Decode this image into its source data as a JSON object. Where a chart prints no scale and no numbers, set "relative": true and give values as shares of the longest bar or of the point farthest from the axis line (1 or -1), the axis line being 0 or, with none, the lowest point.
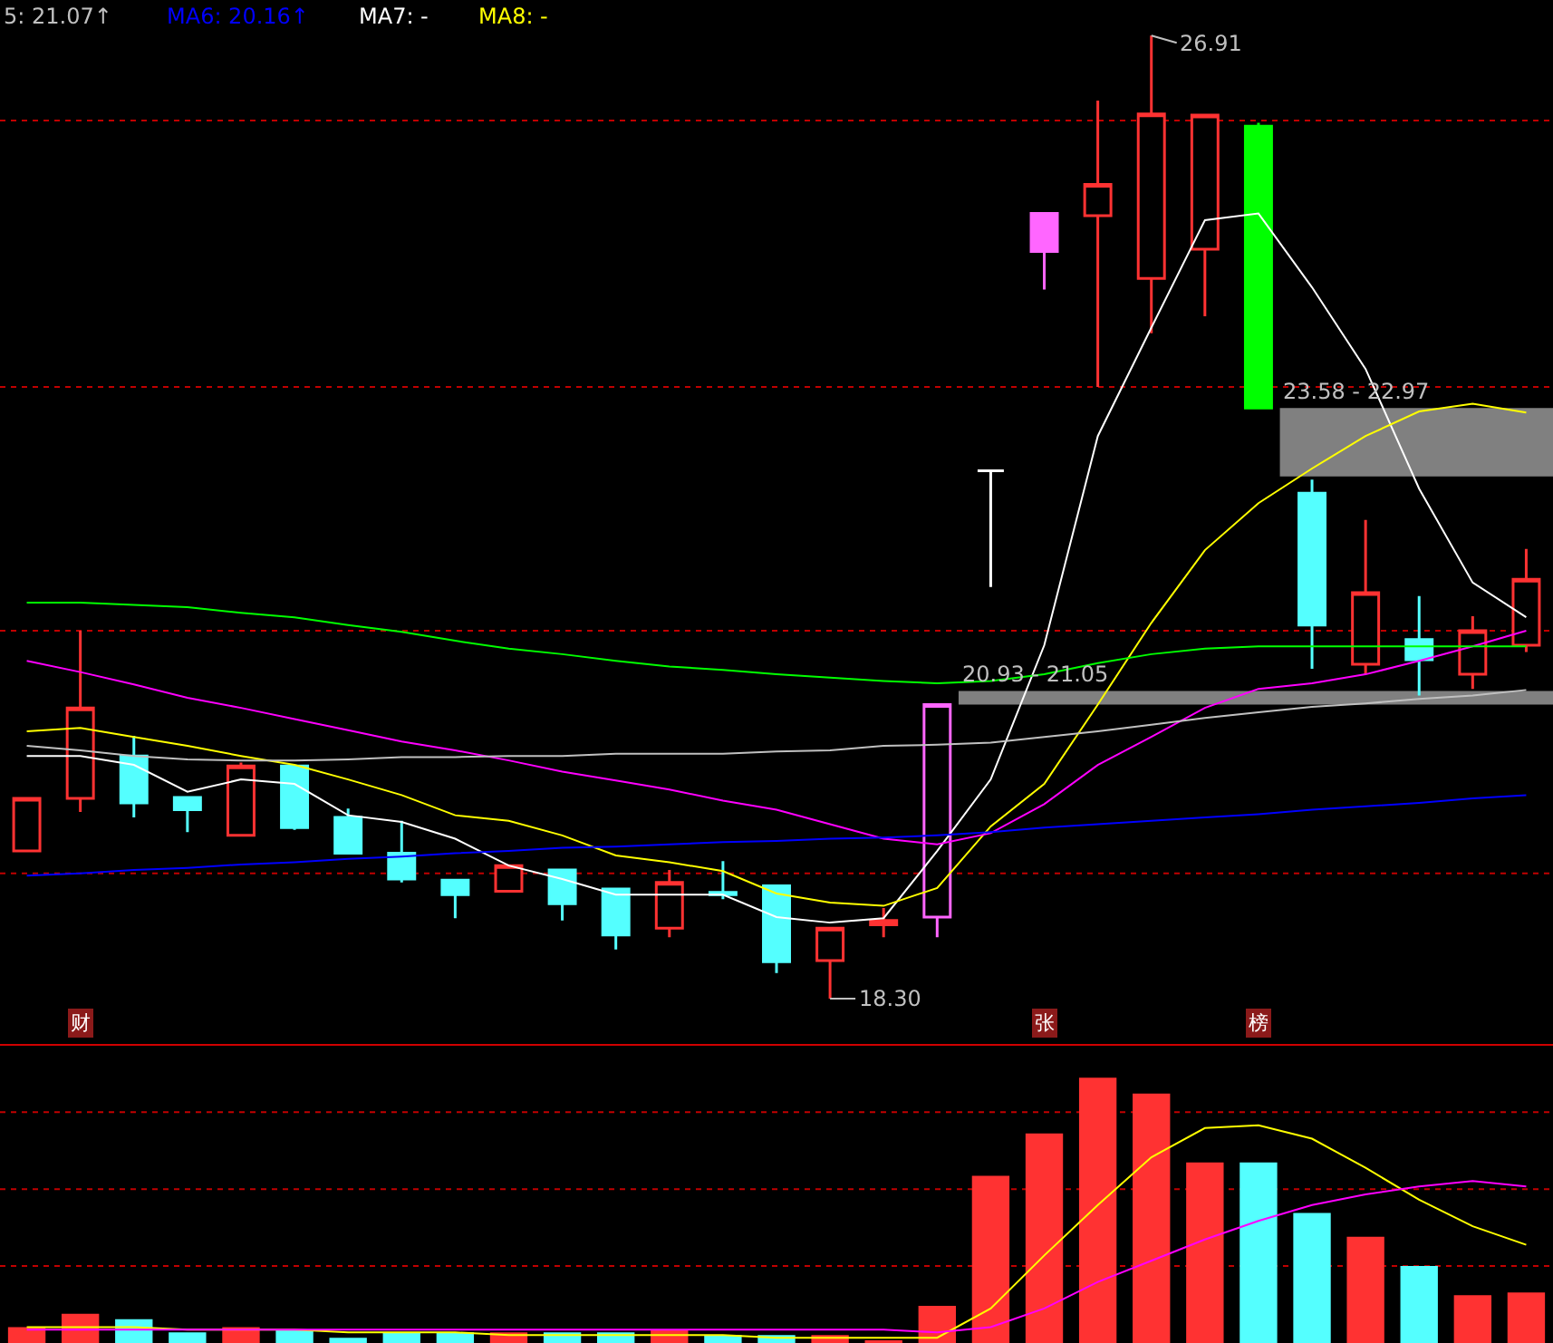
{
  "chart_data": [
    {
      "type": "candlestick",
      "tick_labels": false,
      "categories": [
        null,
        null,
        null,
        null,
        null,
        null,
        null,
        null,
        null,
        null,
        null,
        null,
        null,
        null,
        null,
        null,
        null,
        null,
        null,
        null,
        null,
        null,
        null,
        null,
        null,
        null,
        null,
        null,
        null
      ],
      "ohlc": [
        [
          19.62,
          20.09,
          19.62,
          20.09
        ],
        [
          20.09,
          21.59,
          19.97,
          20.9
        ],
        [
          20.47,
          20.65,
          19.92,
          20.05
        ],
        [
          20.1,
          20.1,
          19.79,
          19.99
        ],
        [
          19.76,
          20.41,
          19.76,
          20.38
        ],
        [
          20.38,
          20.38,
          19.81,
          19.83
        ],
        [
          19.92,
          20.0,
          19.59,
          19.6
        ],
        [
          19.6,
          19.89,
          19.34,
          19.37
        ],
        [
          19.36,
          19.36,
          19.02,
          19.23
        ],
        [
          19.26,
          19.49,
          19.26,
          19.49
        ],
        [
          19.45,
          19.45,
          19.0,
          19.15
        ],
        [
          19.28,
          19.28,
          18.74,
          18.87
        ],
        [
          18.93,
          19.45,
          18.85,
          19.34
        ],
        [
          19.25,
          19.53,
          19.19,
          19.23
        ],
        [
          19.31,
          19.31,
          18.53,
          18.63
        ],
        [
          18.64,
          18.93,
          18.3,
          18.93
        ],
        [
          18.96,
          19.11,
          18.85,
          19.0
        ],
        [
          19.03,
          20.93,
          18.85,
          20.93
        ],
        [
          23.02,
          23.02,
          21.98,
          23.02
        ],
        [
          25.32,
          25.32,
          24.64,
          24.98
        ],
        [
          25.3,
          26.33,
          23.77,
          25.58
        ],
        [
          24.74,
          26.91,
          24.25,
          26.21
        ],
        [
          25.0,
          26.2,
          24.4,
          26.2
        ],
        [
          26.1,
          26.13,
          23.58,
          23.58
        ],
        [
          22.82,
          22.94,
          21.25,
          21.64
        ],
        [
          21.29,
          22.58,
          21.2,
          21.93
        ],
        [
          21.51,
          21.9,
          21.01,
          21.33
        ],
        [
          21.2,
          21.72,
          21.07,
          21.59
        ],
        [
          21.46,
          22.32,
          21.4,
          22.05
        ]
      ],
      "colors": [
        "#ff3232",
        "#ff3232",
        "#54ffff",
        "#54ffff",
        "#ff3232",
        "#54ffff",
        "#54ffff",
        "#54ffff",
        "#54ffff",
        "#ff3232",
        "#54ffff",
        "#54ffff",
        "#ff3232",
        "#54ffff",
        "#54ffff",
        "#ff3232",
        "#ff3232",
        "#ff66ff",
        "#ffffff",
        "#ff66ff",
        "#ff3232",
        "#ff3232",
        "#ff3232",
        "#00ff00",
        "#54ffff",
        "#ff3232",
        "#54ffff",
        "#ff3232",
        "#ff3232"
      ],
      "series": [
        {
          "type": "line",
          "color": "#ffffff",
          "values": [
            20.47,
            20.47,
            20.39,
            20.15,
            20.26,
            20.22,
            19.94,
            19.88,
            19.73,
            19.49,
            19.37,
            19.23,
            19.23,
            19.23,
            19.03,
            18.98,
            19.02,
            19.62,
            20.26,
            21.46,
            23.33,
            24.3,
            25.26,
            25.32,
            24.66,
            23.93,
            22.86,
            22.02,
            21.71
          ]
        },
        {
          "type": "line",
          "color": "#ffff00",
          "values": [
            20.69,
            20.72,
            20.64,
            20.56,
            20.47,
            20.39,
            20.26,
            20.12,
            19.94,
            19.89,
            19.76,
            19.58,
            19.52,
            19.44,
            19.24,
            19.16,
            19.13,
            19.29,
            19.84,
            20.22,
            20.93,
            21.66,
            22.31,
            22.73,
            23.04,
            23.33,
            23.55,
            23.62,
            23.54
          ]
        },
        {
          "type": "line",
          "color": "#ff00ff",
          "values": [
            21.32,
            21.22,
            21.11,
            20.99,
            20.9,
            20.8,
            20.7,
            20.6,
            20.52,
            20.43,
            20.33,
            20.25,
            20.17,
            20.07,
            19.99,
            19.86,
            19.73,
            19.68,
            19.78,
            20.04,
            20.39,
            20.64,
            20.9,
            21.07,
            21.12,
            21.2,
            21.32,
            21.45,
            21.59
          ]
        },
        {
          "type": "line",
          "color": "#00ff00",
          "values": [
            21.84,
            21.84,
            21.82,
            21.8,
            21.75,
            21.71,
            21.64,
            21.58,
            21.5,
            21.43,
            21.38,
            21.32,
            21.27,
            21.24,
            21.2,
            21.17,
            21.14,
            21.12,
            21.14,
            21.2,
            21.3,
            21.38,
            21.43,
            21.45,
            21.45,
            21.45,
            21.45,
            21.45,
            21.45
          ]
        },
        {
          "type": "line",
          "color": "#c0c0c0",
          "values": [
            20.56,
            20.52,
            20.47,
            20.44,
            20.43,
            20.43,
            20.44,
            20.46,
            20.46,
            20.47,
            20.47,
            20.49,
            20.49,
            20.49,
            20.51,
            20.52,
            20.56,
            20.57,
            20.59,
            20.64,
            20.69,
            20.75,
            20.81,
            20.86,
            20.91,
            20.94,
            20.98,
            21.01,
            21.06
          ]
        },
        {
          "type": "line",
          "color": "#0000ff",
          "values": [
            19.4,
            19.42,
            19.45,
            19.47,
            19.5,
            19.52,
            19.55,
            19.57,
            19.6,
            19.62,
            19.65,
            19.66,
            19.68,
            19.7,
            19.71,
            19.73,
            19.74,
            19.76,
            19.79,
            19.83,
            19.86,
            19.89,
            19.92,
            19.95,
            19.99,
            20.02,
            20.05,
            20.09,
            20.12
          ]
        }
      ],
      "bands": [
        {
          "axis": "y",
          "from": 22.97,
          "to": 23.58,
          "label": "23.58 - 22.97",
          "color": "#808080"
        },
        {
          "axis": "y",
          "from": 20.93,
          "to": 21.05,
          "label": "20.93 - 21.05",
          "color": "#808080"
        }
      ],
      "ref_lines": [
        {
          "axis": "y",
          "value": 26.15,
          "color": "#c00000",
          "line_style": "dotted"
        },
        {
          "axis": "y",
          "value": 23.77,
          "color": "#c00000",
          "line_style": "dotted"
        },
        {
          "axis": "y",
          "value": 21.59,
          "color": "#c00000",
          "line_style": "dotted"
        },
        {
          "axis": "y",
          "value": 19.42,
          "color": "#c00000",
          "line_style": "dotted"
        }
      ],
      "annotations": [
        "5: 21.07↑",
        "MA6: 20.16↑",
        "MA7: -",
        "MA8: -",
        "财",
        "张",
        "榜",
        "26.91",
        "18.30"
      ]
    },
    {
      "type": "bar",
      "relative": true,
      "tick_labels": false,
      "categories": [
        null,
        null,
        null,
        null,
        null,
        null,
        null,
        null,
        null,
        null,
        null,
        null,
        null,
        null,
        null,
        null,
        null,
        null,
        null,
        null,
        null,
        null,
        null,
        null,
        null,
        null,
        null,
        null,
        null
      ],
      "series": [
        {
          "type": "bar",
          "colors": [
            "#ff3232",
            "#ff3232",
            "#54ffff",
            "#54ffff",
            "#ff3232",
            "#54ffff",
            "#54ffff",
            "#54ffff",
            "#54ffff",
            "#ff3232",
            "#54ffff",
            "#54ffff",
            "#ff3232",
            "#54ffff",
            "#54ffff",
            "#ff3232",
            "#ff3232",
            "#ff3232",
            "#ff3232",
            "#ff3232",
            "#ff3232",
            "#ff3232",
            "#ff3232",
            "#54ffff",
            "#54ffff",
            "#ff3232",
            "#54ffff",
            "#ff3232",
            "#ff3232"
          ],
          "values": [
            0.06,
            0.11,
            0.09,
            0.04,
            0.06,
            0.05,
            0.02,
            0.04,
            0.04,
            0.04,
            0.04,
            0.04,
            0.05,
            0.03,
            0.03,
            0.03,
            0.01,
            0.14,
            0.63,
            0.79,
            1,
            0.94,
            0.68,
            0.68,
            0.49,
            0.4,
            0.29,
            0.18,
            0.19
          ]
        },
        {
          "type": "line",
          "color": "#ffff00",
          "values": [
            0.06,
            0.06,
            0.06,
            0.05,
            0.05,
            0.05,
            0.04,
            0.04,
            0.04,
            0.03,
            0.03,
            0.03,
            0.03,
            0.03,
            0.02,
            0.02,
            0.02,
            0.02,
            0.13,
            0.33,
            0.52,
            0.7,
            0.81,
            0.82,
            0.77,
            0.66,
            0.54,
            0.44,
            0.37
          ]
        },
        {
          "type": "line",
          "color": "#ff00ff",
          "values": [
            0.05,
            0.05,
            0.05,
            0.05,
            0.05,
            0.05,
            0.05,
            0.05,
            0.05,
            0.05,
            0.05,
            0.05,
            0.05,
            0.05,
            0.05,
            0.05,
            0.05,
            0.04,
            0.06,
            0.13,
            0.23,
            0.31,
            0.39,
            0.46,
            0.52,
            0.56,
            0.59,
            0.61,
            0.59
          ]
        }
      ],
      "ref_lines": [
        {
          "axis": "y",
          "value": 0.87,
          "color": "#c00000",
          "line_style": "dotted"
        },
        {
          "axis": "y",
          "value": 0.58,
          "color": "#c00000",
          "line_style": "dotted"
        },
        {
          "axis": "y",
          "value": 0.29,
          "color": "#c00000",
          "line_style": "dotted"
        }
      ]
    }
  ]
}
